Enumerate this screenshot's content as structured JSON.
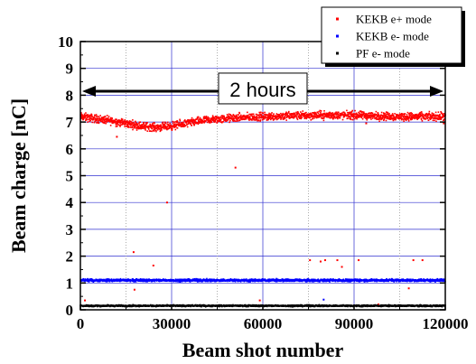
{
  "chart_data": {
    "type": "scatter",
    "title": "",
    "xlabel": "Beam shot number",
    "ylabel": "Beam charge [nC]",
    "xlim": [
      0,
      120000
    ],
    "ylim": [
      0,
      10
    ],
    "xticks": [
      0,
      30000,
      60000,
      90000,
      120000
    ],
    "xtick_labels": [
      "0",
      "30000",
      "60000",
      "90000",
      "120000"
    ],
    "yticks": [
      0,
      1,
      2,
      3,
      4,
      5,
      6,
      7,
      8,
      9,
      10
    ],
    "ytick_labels": [
      "0",
      "1",
      "2",
      "3",
      "4",
      "5",
      "6",
      "7",
      "8",
      "9",
      "10"
    ],
    "grid": true,
    "legend": {
      "placement": "top-right",
      "entries": [
        "KEKB e+ mode",
        "KEKB e- mode",
        "PF e- mode"
      ]
    },
    "annotation": {
      "text": "2 hours",
      "y": 8.15,
      "x_start": 0,
      "x_end": 120000
    },
    "series": [
      {
        "name": "KEKB e+ mode",
        "color": "#ff0000",
        "band": {
          "x": [
            0,
            10000,
            20000,
            25000,
            30000,
            35000,
            40000,
            50000,
            60000,
            75000,
            90000,
            105000,
            120000
          ],
          "center": [
            7.2,
            7.05,
            6.85,
            6.8,
            6.85,
            6.95,
            7.05,
            7.15,
            7.2,
            7.25,
            7.25,
            7.2,
            7.2
          ],
          "spread": 0.22
        },
        "outliers": [
          {
            "x": 1500,
            "y": 0.35
          },
          {
            "x": 12000,
            "y": 6.45
          },
          {
            "x": 17500,
            "y": 2.15
          },
          {
            "x": 17800,
            "y": 0.75
          },
          {
            "x": 24000,
            "y": 1.65
          },
          {
            "x": 28500,
            "y": 4.0
          },
          {
            "x": 51000,
            "y": 5.3
          },
          {
            "x": 59000,
            "y": 0.35
          },
          {
            "x": 75500,
            "y": 1.85
          },
          {
            "x": 79000,
            "y": 1.8
          },
          {
            "x": 80500,
            "y": 1.85
          },
          {
            "x": 84500,
            "y": 1.85
          },
          {
            "x": 86000,
            "y": 1.6
          },
          {
            "x": 91500,
            "y": 1.85
          },
          {
            "x": 94000,
            "y": 6.95
          },
          {
            "x": 98000,
            "y": 0.2
          },
          {
            "x": 108000,
            "y": 0.8
          },
          {
            "x": 109500,
            "y": 1.85
          },
          {
            "x": 112500,
            "y": 1.85
          },
          {
            "x": 119500,
            "y": 6.95
          }
        ]
      },
      {
        "name": "KEKB e- mode",
        "color": "#0000ff",
        "band": {
          "x": [
            0,
            120000
          ],
          "center": [
            1.1,
            1.1
          ],
          "spread": 0.07
        },
        "outliers": [
          {
            "x": 80000,
            "y": 0.38
          }
        ]
      },
      {
        "name": "PF e- mode",
        "color": "#000000",
        "band": {
          "x": [
            0,
            120000
          ],
          "center": [
            0.15,
            0.15
          ],
          "spread": 0.045
        },
        "outliers": []
      }
    ]
  }
}
